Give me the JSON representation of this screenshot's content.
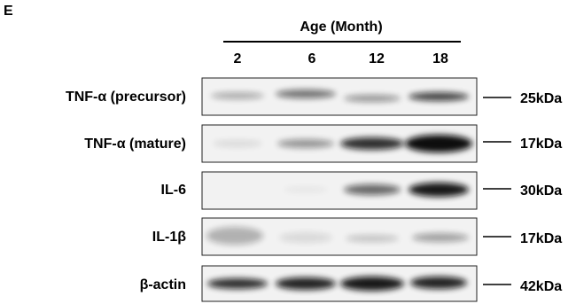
{
  "panel_label": "E",
  "header": {
    "title": "Age (Month)",
    "columns": [
      "2",
      "6",
      "12",
      "18"
    ]
  },
  "rows": [
    {
      "label": "TNF-α (precursor)",
      "marker": "25kDa"
    },
    {
      "label": "TNF-α (mature)",
      "marker": "17kDa"
    },
    {
      "label": "IL-6",
      "marker": "30kDa"
    },
    {
      "label": "IL-1β",
      "marker": "17kDa"
    },
    {
      "label": "β-actin",
      "marker": "42kDa"
    }
  ]
}
